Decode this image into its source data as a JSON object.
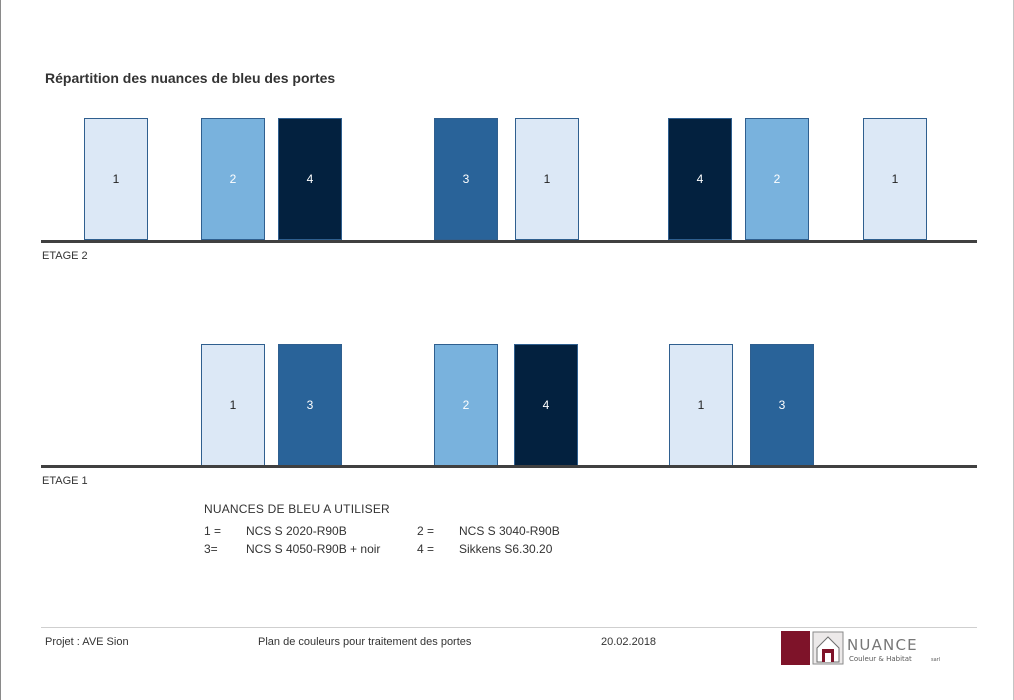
{
  "title": "Répartition des nuances de bleu des portes",
  "colors": {
    "1": "#dce8f6",
    "2": "#79b2dd",
    "3": "#296399",
    "4": "#03213f",
    "floor": "#404040",
    "logo_red": "#7e1329"
  },
  "floors": [
    {
      "label": "ETAGE 2",
      "doors": [
        "1",
        "2",
        "4",
        "3",
        "1",
        "4",
        "2",
        "1"
      ]
    },
    {
      "label": "ETAGE 1",
      "doors": [
        "1",
        "3",
        "2",
        "4",
        "1",
        "3"
      ]
    }
  ],
  "legend": {
    "title": "NUANCES DE BLEU A UTILISER",
    "items": [
      {
        "key": "1 =",
        "value": "NCS S 2020-R90B"
      },
      {
        "key": "2 =",
        "value": "NCS S 3040-R90B"
      },
      {
        "key": "3=",
        "value": "NCS S 4050-R90B + noir"
      },
      {
        "key": "4 =",
        "value": "Sikkens S6.30.20"
      }
    ]
  },
  "footer": {
    "project": "Projet : AVE Sion",
    "description": "Plan de couleurs pour traitement des portes",
    "date": "20.02.2018"
  },
  "logo": {
    "name": "NUANCE",
    "tagline": "Couleur & Habitat",
    "suffix": "sarl"
  }
}
